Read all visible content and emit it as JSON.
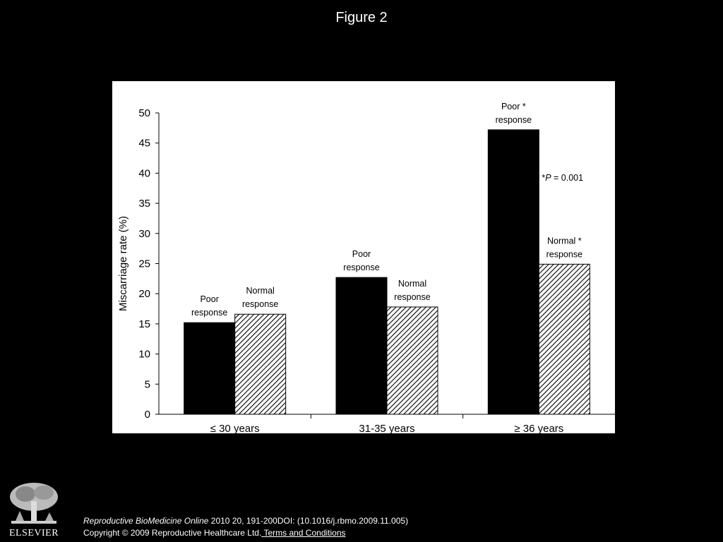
{
  "slide": {
    "title": "Figure 2"
  },
  "chart_data": {
    "type": "bar",
    "ylabel": "Miscarriage rate (%)",
    "ylim": [
      0,
      50
    ],
    "yticks": [
      0,
      5,
      10,
      15,
      20,
      25,
      30,
      35,
      40,
      45,
      50
    ],
    "categories": [
      "≤ 30 years",
      "31-35 years",
      "≥ 36 years"
    ],
    "series": [
      {
        "name": "Poor response",
        "fill": "solid",
        "color": "#000000",
        "values": [
          15.2,
          22.7,
          47.2
        ],
        "labels": [
          [
            "Poor",
            "response"
          ],
          [
            "Poor",
            "response"
          ],
          [
            "Poor *",
            "response"
          ]
        ]
      },
      {
        "name": "Normal response",
        "fill": "hatched",
        "color": "#000000",
        "values": [
          16.6,
          17.8,
          24.9
        ],
        "labels": [
          [
            "Normal",
            "response"
          ],
          [
            "Normal",
            "response"
          ],
          [
            "Normal *",
            "response"
          ]
        ]
      }
    ],
    "annotation": {
      "prefix": "*",
      "italic": "P",
      "suffix": " = 0.001"
    }
  },
  "footer": {
    "journal": "Reproductive BioMedicine Online",
    "citation": " 2010 20, 191-200DOI: (10.1016/j.rbmo.2009.11.005)",
    "copyright": "Copyright © 2009 Reproductive Healthcare Ltd.",
    "terms_link": " Terms and Conditions",
    "logo_text": "ELSEVIER"
  }
}
